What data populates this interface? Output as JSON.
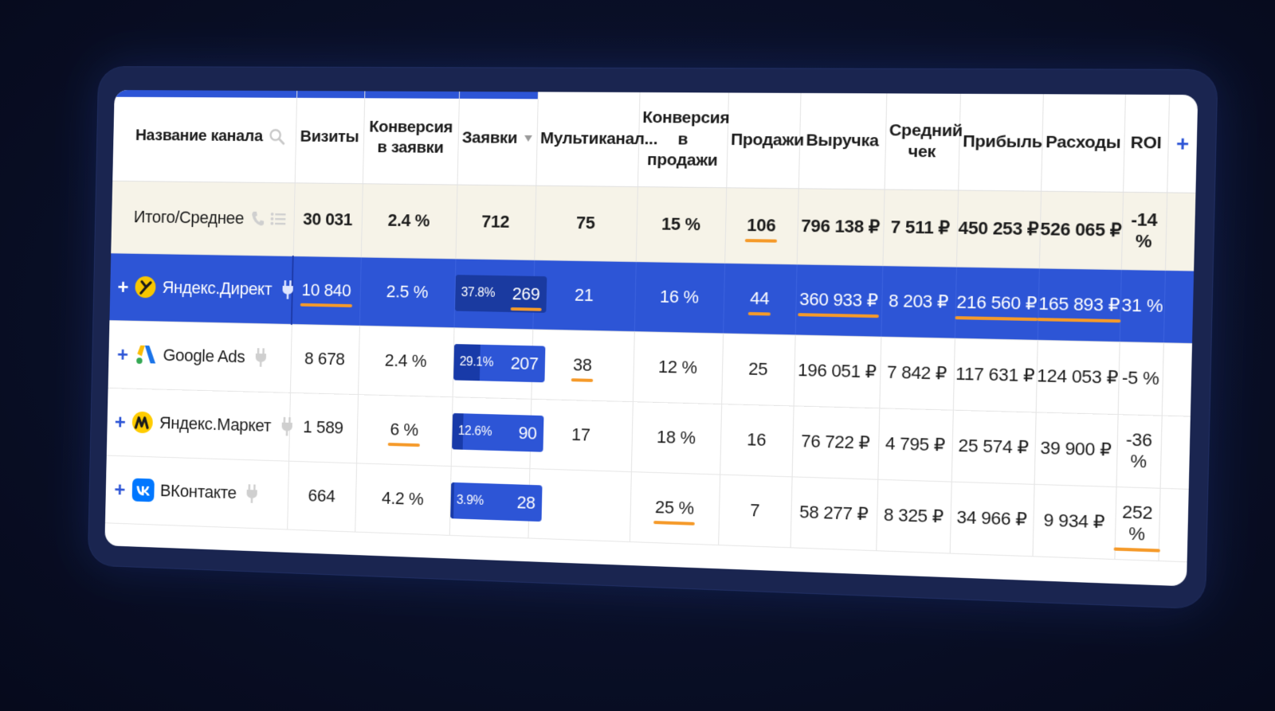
{
  "columns": {
    "name": "Название канала",
    "visits": "Визиты",
    "conv_leads": "Конверсия в заявки",
    "leads": "Заявки",
    "multichannel": "Мультиканал...",
    "conv_sales": "Конверсия в продажи",
    "sales": "Продажи",
    "revenue": "Выручка",
    "avg_check": "Средний чек",
    "profit": "Прибыль",
    "expenses": "Расходы",
    "roi": "ROI",
    "add": "+"
  },
  "total": {
    "label": "Итого/Среднее",
    "visits": "30 031",
    "conv_leads": "2.4 %",
    "leads": "712",
    "multichannel": "75",
    "conv_sales": "15 %",
    "sales": "106",
    "revenue": "796 138 ₽",
    "avg_check": "7 511 ₽",
    "profit": "450 253 ₽",
    "expenses": "526 065 ₽",
    "roi": "-14 %"
  },
  "rows": [
    {
      "name": "Яндекс.Директ",
      "logo": "yandex-direct-icon",
      "logo_color": "#f7c600",
      "visits": "10 840",
      "conv_leads": "2.5 %",
      "leads_pct": "37.8%",
      "leads_fill": 0.378,
      "leads": "269",
      "multichannel": "21",
      "conv_sales": "16 %",
      "sales": "44",
      "revenue": "360 933 ₽",
      "avg_check": "8 203 ₽",
      "profit": "216 560 ₽",
      "expenses": "165 893 ₽",
      "roi": "31 %"
    },
    {
      "name": "Google Ads",
      "logo": "google-ads-icon",
      "logo_color": "#1a73e8",
      "visits": "8 678",
      "conv_leads": "2.4 %",
      "leads_pct": "29.1%",
      "leads_fill": 0.291,
      "leads": "207",
      "multichannel": "38",
      "conv_sales": "12 %",
      "sales": "25",
      "revenue": "196 051 ₽",
      "avg_check": "7 842 ₽",
      "profit": "117 631 ₽",
      "expenses": "124 053 ₽",
      "roi": "-5 %"
    },
    {
      "name": "Яндекс.Маркет",
      "logo": "yandex-market-icon",
      "logo_color": "#ffcc00",
      "visits": "1 589",
      "conv_leads": "6 %",
      "leads_pct": "12.6%",
      "leads_fill": 0.126,
      "leads": "90",
      "multichannel": "17",
      "conv_sales": "18 %",
      "sales": "16",
      "revenue": "76 722 ₽",
      "avg_check": "4 795 ₽",
      "profit": "25 574 ₽",
      "expenses": "39 900 ₽",
      "roi": "-36 %"
    },
    {
      "name": "ВКонтакте",
      "logo": "vk-icon",
      "logo_color": "#0077ff",
      "visits": "664",
      "conv_leads": "4.2 %",
      "leads_pct": "3.9%",
      "leads_fill": 0.039,
      "leads": "28",
      "multichannel": "",
      "conv_sales": "25 %",
      "sales": "7",
      "revenue": "58 277 ₽",
      "avg_check": "8 325 ₽",
      "profit": "34 966 ₽",
      "expenses": "9 934 ₽",
      "roi": "252 %"
    }
  ],
  "colors": {
    "accent": "#2d55d6",
    "highlight_underline": "#f59a2a",
    "total_row_bg": "#f6f3e8"
  }
}
